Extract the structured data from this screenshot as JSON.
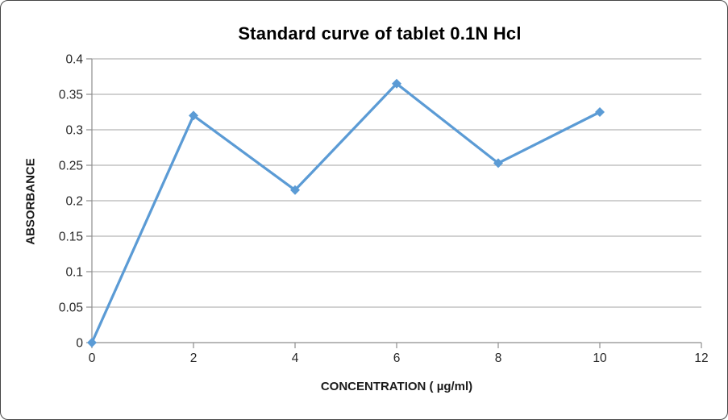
{
  "chart_data": {
    "type": "line",
    "title": "Standard curve of tablet 0.1N Hcl",
    "xlabel": "CONCENTRATION ( µg/ml)",
    "ylabel": "ABSORBANCE",
    "x": [
      0,
      2,
      4,
      6,
      8,
      10
    ],
    "y": [
      0,
      0.32,
      0.215,
      0.365,
      0.253,
      0.325
    ],
    "xlim": [
      0,
      12
    ],
    "ylim": [
      0,
      0.4
    ],
    "x_ticks": [
      0,
      2,
      4,
      6,
      8,
      10,
      12
    ],
    "y_ticks": [
      0,
      0.05,
      0.1,
      0.15,
      0.2,
      0.25,
      0.3,
      0.35,
      0.4
    ],
    "grid": "horizontal",
    "legend": "none",
    "marker_style": "diamond",
    "colors": {
      "line": "#5B9BD5",
      "marker": "#5B9BD5",
      "gridline": "#A3A3A3",
      "axis": "#8E8E8E",
      "tick_label": "#262626",
      "title": "#000000",
      "frame_border": "#454545",
      "background": "#FFFFFF"
    }
  }
}
